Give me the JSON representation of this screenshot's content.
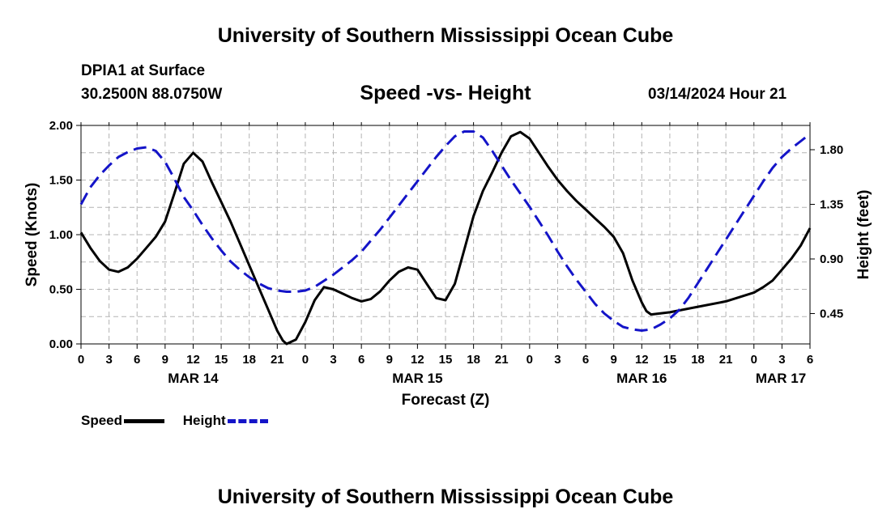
{
  "header": {
    "title": "University of Southern Mississippi Ocean Cube",
    "station": "DPIA1 at Surface",
    "coordinates": "30.2500N  88.0750W",
    "timestamp": "03/14/2024 Hour 21"
  },
  "footer": {
    "title": "University of Southern Mississippi Ocean Cube"
  },
  "legend": {
    "speed_label": "Speed",
    "height_label": "Height"
  },
  "colors": {
    "speed": "#000000",
    "height": "#1414c8",
    "grid": "#b4b4b4"
  },
  "chart_data": {
    "type": "line",
    "title": "Speed -vs- Height",
    "xlabel": "Forecast (Z)",
    "ylabel_left": "Speed (Knots)",
    "ylabel_right": "Height (feet)",
    "x_range_hours": [
      0,
      78
    ],
    "x_ticks": [
      {
        "h": 0,
        "label": "0"
      },
      {
        "h": 3,
        "label": "3"
      },
      {
        "h": 6,
        "label": "6"
      },
      {
        "h": 9,
        "label": "9"
      },
      {
        "h": 12,
        "label": "12"
      },
      {
        "h": 15,
        "label": "15"
      },
      {
        "h": 18,
        "label": "18"
      },
      {
        "h": 21,
        "label": "21"
      },
      {
        "h": 24,
        "label": "0"
      },
      {
        "h": 27,
        "label": "3"
      },
      {
        "h": 30,
        "label": "6"
      },
      {
        "h": 33,
        "label": "9"
      },
      {
        "h": 36,
        "label": "12"
      },
      {
        "h": 39,
        "label": "15"
      },
      {
        "h": 42,
        "label": "18"
      },
      {
        "h": 45,
        "label": "21"
      },
      {
        "h": 48,
        "label": "0"
      },
      {
        "h": 51,
        "label": "3"
      },
      {
        "h": 54,
        "label": "6"
      },
      {
        "h": 57,
        "label": "9"
      },
      {
        "h": 60,
        "label": "12"
      },
      {
        "h": 63,
        "label": "15"
      },
      {
        "h": 66,
        "label": "18"
      },
      {
        "h": 69,
        "label": "21"
      },
      {
        "h": 72,
        "label": "0"
      },
      {
        "h": 75,
        "label": "3"
      },
      {
        "h": 78,
        "label": "6"
      }
    ],
    "date_labels": [
      {
        "h": 12,
        "label": "MAR 14"
      },
      {
        "h": 36,
        "label": "MAR 15"
      },
      {
        "h": 60,
        "label": "MAR 16"
      },
      {
        "h": 78,
        "label": "MAR 17"
      }
    ],
    "y_left": {
      "min": 0,
      "max": 2,
      "ticks": [
        "0.00",
        "0.50",
        "1.00",
        "1.50",
        "2.00"
      ],
      "tick_values": [
        0,
        0.5,
        1,
        1.5,
        2
      ]
    },
    "y_right": {
      "min": 0.2,
      "max": 2.0,
      "ticks": [
        {
          "v": 0.45,
          "label": "0.45"
        },
        {
          "v": 0.9,
          "label": "0.90"
        },
        {
          "v": 1.35,
          "label": "1.35"
        },
        {
          "v": 1.8,
          "label": "1.80"
        }
      ]
    },
    "series": [
      {
        "name": "Speed",
        "axis": "left",
        "style": "solid",
        "points": [
          [
            0,
            1.02
          ],
          [
            1,
            0.88
          ],
          [
            2,
            0.76
          ],
          [
            3,
            0.68
          ],
          [
            4,
            0.66
          ],
          [
            5,
            0.7
          ],
          [
            6,
            0.78
          ],
          [
            7,
            0.88
          ],
          [
            8,
            0.98
          ],
          [
            9,
            1.12
          ],
          [
            10,
            1.38
          ],
          [
            11,
            1.65
          ],
          [
            12,
            1.75
          ],
          [
            13,
            1.67
          ],
          [
            14,
            1.48
          ],
          [
            15,
            1.3
          ],
          [
            16,
            1.12
          ],
          [
            17,
            0.92
          ],
          [
            18,
            0.72
          ],
          [
            19,
            0.52
          ],
          [
            20,
            0.32
          ],
          [
            21,
            0.12
          ],
          [
            21.6,
            0.03
          ],
          [
            22,
            0.0
          ],
          [
            23,
            0.04
          ],
          [
            24,
            0.2
          ],
          [
            25,
            0.4
          ],
          [
            26,
            0.52
          ],
          [
            27,
            0.5
          ],
          [
            28,
            0.46
          ],
          [
            29,
            0.42
          ],
          [
            30,
            0.39
          ],
          [
            31,
            0.41
          ],
          [
            32,
            0.48
          ],
          [
            33,
            0.58
          ],
          [
            34,
            0.66
          ],
          [
            35,
            0.7
          ],
          [
            36,
            0.68
          ],
          [
            37,
            0.55
          ],
          [
            38,
            0.42
          ],
          [
            39,
            0.4
          ],
          [
            40,
            0.55
          ],
          [
            41,
            0.86
          ],
          [
            42,
            1.17
          ],
          [
            43,
            1.4
          ],
          [
            44,
            1.57
          ],
          [
            45,
            1.75
          ],
          [
            46,
            1.9
          ],
          [
            47,
            1.94
          ],
          [
            48,
            1.88
          ],
          [
            49,
            1.75
          ],
          [
            50,
            1.62
          ],
          [
            51,
            1.5
          ],
          [
            52,
            1.4
          ],
          [
            53,
            1.31
          ],
          [
            54,
            1.23
          ],
          [
            55,
            1.15
          ],
          [
            56,
            1.07
          ],
          [
            57,
            0.98
          ],
          [
            58,
            0.83
          ],
          [
            59,
            0.58
          ],
          [
            60,
            0.38
          ],
          [
            60.5,
            0.3
          ],
          [
            61,
            0.27
          ],
          [
            63,
            0.29
          ],
          [
            66,
            0.34
          ],
          [
            69,
            0.39
          ],
          [
            72,
            0.47
          ],
          [
            73,
            0.52
          ],
          [
            74,
            0.58
          ],
          [
            75,
            0.68
          ],
          [
            76,
            0.78
          ],
          [
            77,
            0.9
          ],
          [
            78,
            1.06
          ]
        ]
      },
      {
        "name": "Height",
        "axis": "right",
        "style": "dashed",
        "points": [
          [
            0,
            1.35
          ],
          [
            1,
            1.49
          ],
          [
            2,
            1.59
          ],
          [
            3,
            1.67
          ],
          [
            4,
            1.74
          ],
          [
            5,
            1.78
          ],
          [
            6,
            1.81
          ],
          [
            7,
            1.82
          ],
          [
            8,
            1.79
          ],
          [
            9,
            1.7
          ],
          [
            10,
            1.56
          ],
          [
            11,
            1.41
          ],
          [
            12,
            1.3
          ],
          [
            13,
            1.18
          ],
          [
            14,
            1.07
          ],
          [
            15,
            0.97
          ],
          [
            16,
            0.88
          ],
          [
            17,
            0.81
          ],
          [
            18,
            0.75
          ],
          [
            19,
            0.7
          ],
          [
            20,
            0.66
          ],
          [
            21,
            0.64
          ],
          [
            22,
            0.63
          ],
          [
            23,
            0.63
          ],
          [
            24,
            0.64
          ],
          [
            25,
            0.67
          ],
          [
            26,
            0.72
          ],
          [
            27,
            0.77
          ],
          [
            28,
            0.83
          ],
          [
            29,
            0.89
          ],
          [
            30,
            0.96
          ],
          [
            31,
            1.05
          ],
          [
            32,
            1.14
          ],
          [
            33,
            1.24
          ],
          [
            34,
            1.34
          ],
          [
            35,
            1.44
          ],
          [
            36,
            1.54
          ],
          [
            37,
            1.64
          ],
          [
            38,
            1.74
          ],
          [
            39,
            1.83
          ],
          [
            40,
            1.91
          ],
          [
            41,
            1.95
          ],
          [
            42,
            1.95
          ],
          [
            43,
            1.9
          ],
          [
            44,
            1.79
          ],
          [
            45,
            1.67
          ],
          [
            46,
            1.55
          ],
          [
            47,
            1.44
          ],
          [
            48,
            1.33
          ],
          [
            49,
            1.21
          ],
          [
            50,
            1.09
          ],
          [
            51,
            0.96
          ],
          [
            52,
            0.84
          ],
          [
            53,
            0.73
          ],
          [
            54,
            0.63
          ],
          [
            55,
            0.53
          ],
          [
            56,
            0.45
          ],
          [
            57,
            0.39
          ],
          [
            58,
            0.34
          ],
          [
            59,
            0.32
          ],
          [
            60,
            0.31
          ],
          [
            61,
            0.32
          ],
          [
            62,
            0.36
          ],
          [
            63,
            0.41
          ],
          [
            64,
            0.48
          ],
          [
            65,
            0.58
          ],
          [
            66,
            0.7
          ],
          [
            67,
            0.82
          ],
          [
            68,
            0.94
          ],
          [
            69,
            1.06
          ],
          [
            70,
            1.18
          ],
          [
            71,
            1.3
          ],
          [
            72,
            1.42
          ],
          [
            73,
            1.54
          ],
          [
            74,
            1.65
          ],
          [
            75,
            1.74
          ],
          [
            76,
            1.81
          ],
          [
            77,
            1.87
          ],
          [
            78,
            1.93
          ]
        ]
      }
    ]
  }
}
